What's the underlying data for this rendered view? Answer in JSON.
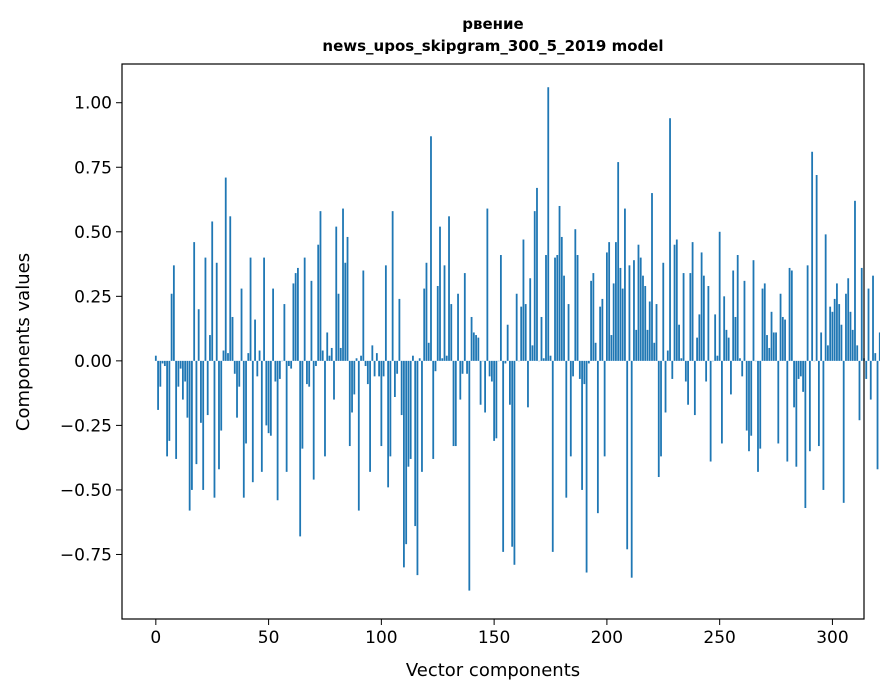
{
  "chart_data": {
    "type": "bar",
    "title": "рвение",
    "subtitle": "news_upos_skipgram_300_5_2019 model",
    "xlabel": "Vector components",
    "ylabel": "Components values",
    "xlim": [
      -15,
      314
    ],
    "ylim": [
      -1.0,
      1.15
    ],
    "xticks": [
      0,
      50,
      100,
      150,
      200,
      250,
      300
    ],
    "xtick_labels": [
      "0",
      "50",
      "100",
      "150",
      "200",
      "250",
      "300"
    ],
    "yticks": [
      -0.75,
      -0.5,
      -0.25,
      0.0,
      0.25,
      0.5,
      0.75,
      1.0
    ],
    "ytick_labels": [
      "−0.75",
      "−0.50",
      "−0.25",
      "0.00",
      "0.25",
      "0.50",
      "0.75",
      "1.00"
    ],
    "grid": false,
    "bar_color": "#1f77b4",
    "values": [
      0.02,
      -0.19,
      -0.1,
      -0.01,
      -0.02,
      -0.37,
      -0.31,
      0.26,
      0.37,
      -0.38,
      -0.1,
      -0.03,
      -0.15,
      -0.08,
      -0.22,
      -0.58,
      -0.5,
      0.46,
      -0.4,
      0.2,
      -0.24,
      -0.5,
      0.4,
      -0.21,
      0.1,
      0.54,
      -0.53,
      0.38,
      -0.42,
      -0.27,
      0.04,
      0.71,
      0.03,
      0.56,
      0.17,
      -0.05,
      -0.22,
      -0.1,
      0.28,
      -0.53,
      -0.32,
      0.03,
      0.4,
      -0.47,
      0.16,
      -0.06,
      0.04,
      -0.43,
      0.4,
      -0.25,
      -0.28,
      -0.29,
      0.28,
      -0.08,
      -0.54,
      -0.07,
      0.0,
      0.22,
      -0.43,
      -0.02,
      -0.03,
      0.3,
      0.34,
      0.36,
      -0.68,
      -0.34,
      0.4,
      -0.09,
      -0.1,
      0.31,
      -0.46,
      -0.02,
      0.45,
      0.58,
      0.04,
      -0.37,
      0.11,
      0.02,
      0.05,
      -0.15,
      0.52,
      0.26,
      0.05,
      0.59,
      0.38,
      0.48,
      -0.33,
      -0.2,
      -0.13,
      0.01,
      -0.58,
      0.02,
      0.35,
      -0.02,
      -0.09,
      -0.43,
      0.06,
      -0.06,
      0.03,
      -0.06,
      -0.33,
      -0.06,
      0.37,
      -0.49,
      -0.37,
      0.58,
      -0.14,
      -0.05,
      0.24,
      -0.21,
      -0.8,
      -0.71,
      -0.41,
      -0.38,
      0.02,
      -0.64,
      -0.83,
      0.01,
      -0.43,
      0.28,
      0.38,
      0.07,
      0.87,
      -0.38,
      -0.04,
      0.29,
      0.52,
      0.01,
      0.37,
      0.02,
      0.56,
      0.22,
      -0.33,
      -0.33,
      0.26,
      -0.15,
      -0.05,
      0.34,
      -0.05,
      -0.89,
      0.17,
      0.11,
      0.1,
      0.09,
      -0.17,
      0.0,
      -0.2,
      0.59,
      -0.06,
      -0.08,
      -0.31,
      -0.3,
      0.0,
      0.41,
      -0.74,
      -0.01,
      0.14,
      -0.17,
      -0.72,
      -0.79,
      0.26,
      0.0,
      0.21,
      0.47,
      0.22,
      -0.18,
      0.32,
      0.06,
      0.58,
      0.67,
      0.0,
      0.17,
      0.01,
      0.41,
      1.06,
      0.02,
      -0.74,
      0.4,
      0.41,
      0.6,
      0.48,
      0.33,
      -0.53,
      0.22,
      -0.37,
      -0.06,
      0.51,
      0.41,
      -0.07,
      -0.5,
      -0.09,
      -0.82,
      -0.01,
      0.31,
      0.34,
      0.07,
      -0.59,
      0.21,
      0.24,
      -0.37,
      0.42,
      0.46,
      0.1,
      0.3,
      0.46,
      0.77,
      0.36,
      0.28,
      0.59,
      -0.73,
      0.37,
      -0.84,
      0.39,
      0.12,
      0.45,
      0.4,
      0.33,
      0.29,
      0.12,
      0.23,
      0.65,
      0.07,
      0.22,
      -0.45,
      -0.37,
      0.38,
      -0.2,
      0.04,
      0.94,
      -0.07,
      0.45,
      0.47,
      0.14,
      0.01,
      0.34,
      -0.08,
      -0.17,
      0.34,
      0.46,
      -0.21,
      0.09,
      0.18,
      0.42,
      0.33,
      -0.08,
      0.29,
      -0.39,
      0.0,
      0.18,
      0.02,
      0.5,
      -0.32,
      0.25,
      0.12,
      0.09,
      -0.13,
      0.35,
      0.17,
      0.41,
      0.01,
      -0.06,
      0.31,
      -0.27,
      -0.35,
      -0.29,
      0.39,
      0.0,
      -0.43,
      -0.34,
      0.28,
      0.3,
      0.1,
      0.05,
      0.19,
      0.11,
      0.11,
      -0.32,
      0.26,
      0.17,
      0.16,
      -0.39,
      0.36,
      0.35,
      -0.18,
      -0.41,
      -0.07,
      -0.06,
      -0.12,
      -0.57,
      0.37,
      -0.35,
      0.81,
      0.0,
      0.72,
      -0.33,
      0.11,
      -0.5,
      0.49,
      0.06,
      0.21,
      0.19,
      0.24,
      0.3,
      0.22,
      0.14,
      -0.55,
      0.26,
      0.32,
      0.19,
      0.12,
      0.62,
      0.06,
      -0.23,
      0.36,
      0.01,
      -0.07,
      0.28,
      -0.15,
      0.33,
      0.03,
      -0.42,
      0.11,
      0.11
    ]
  }
}
